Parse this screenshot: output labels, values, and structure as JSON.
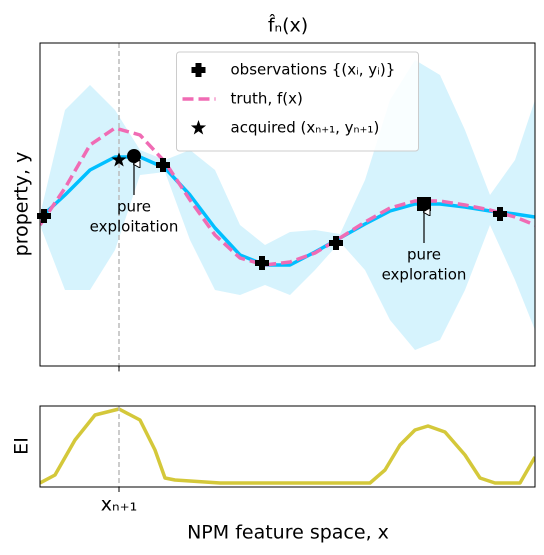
{
  "chart_data": [
    {
      "type": "line",
      "title": "f̂ₙ(x)",
      "y_label": "property, y",
      "xlim": [
        0,
        495
      ],
      "ylim": [
        0,
        323
      ],
      "legend_loc": "upper center",
      "x": [
        0,
        25,
        50,
        75,
        100,
        125,
        150,
        175,
        200,
        225,
        250,
        275,
        300,
        325,
        350,
        375,
        400,
        425,
        450,
        475,
        495
      ],
      "band": {
        "color": "#d6f3fd",
        "upper": [
          151,
          256,
          281,
          256,
          216,
          206,
          216,
          196,
          141,
          121,
          134,
          136,
          132,
          186,
          266,
          306,
          291,
          236,
          171,
          206,
          266
        ],
        "lower": [
          141,
          76,
          76,
          116,
          191,
          194,
          126,
          76,
          71,
          81,
          71,
          96,
          124,
          96,
          46,
          16,
          26,
          76,
          141,
          86,
          36
        ]
      },
      "series": [
        {
          "color": "#00bfff",
          "values": [
            148,
            171,
            196,
            209,
            209,
            198,
            171,
            138,
            111,
            101,
            101,
            114,
            128,
            142,
            155,
            162,
            162,
            159,
            155,
            152,
            149
          ]
        },
        {
          "name": "truth, f(x)",
          "color": "#f06bb4",
          "dashed": true,
          "values": [
            141,
            178,
            221,
            238,
            231,
            204,
            166,
            131,
            108,
            101,
            104,
            113,
            128,
            144,
            158,
            165,
            165,
            161,
            156,
            149,
            141
          ]
        }
      ],
      "observations": {
        "name": "observations {(xᵢ, yᵢ)}",
        "marker": "plus",
        "color": "#000000",
        "x": [
          4,
          123,
          222,
          296,
          460
        ],
        "values": [
          150,
          201,
          103,
          123,
          152
        ]
      },
      "acquired": {
        "name": "acquired (xₙ₊₁, yₙ₊₁)",
        "marker": "star",
        "color": "#000000",
        "x": [
          79
        ],
        "values": [
          206
        ]
      },
      "annotations": [
        {
          "text": [
            "pure",
            "exploitation"
          ],
          "marker": "circle",
          "x": 94,
          "y": 210
        },
        {
          "text": [
            "pure",
            "exploration"
          ],
          "marker": "square",
          "x": 384,
          "y": 162
        }
      ]
    },
    {
      "type": "line",
      "y_label": "EI",
      "x_label": "NPM feature space, x",
      "xlim": [
        0,
        495
      ],
      "ylim": [
        0,
        81
      ],
      "xticks": [
        {
          "value": 79,
          "label": "xₙ₊₁"
        }
      ],
      "series": [
        {
          "color": "#d4c83a",
          "x": [
            0,
            15,
            35,
            55,
            79,
            100,
            115,
            125,
            135,
            150,
            180,
            260,
            330,
            345,
            360,
            375,
            388,
            405,
            425,
            440,
            455,
            480,
            495
          ],
          "values": [
            4,
            12,
            47,
            72,
            78,
            67,
            37,
            9,
            7,
            6,
            4,
            4,
            4,
            17,
            42,
            57,
            61,
            55,
            32,
            9,
            4,
            4,
            30
          ]
        }
      ]
    }
  ]
}
